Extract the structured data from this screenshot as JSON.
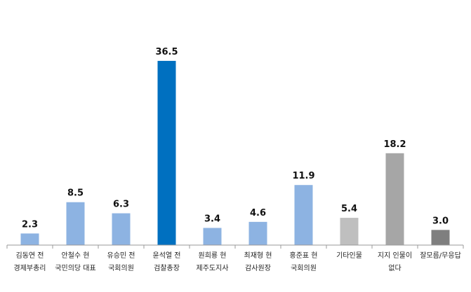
{
  "chart_data": {
    "type": "bar",
    "categories": [
      [
        "김동연 전",
        "경제부총리"
      ],
      [
        "안철수 현",
        "국민의당 대표"
      ],
      [
        "유승민 전",
        "국회의원"
      ],
      [
        "윤석열 전",
        "검찰총장"
      ],
      [
        "원희룡 현",
        "제주도지사"
      ],
      [
        "최재형 현",
        "감사원장"
      ],
      [
        "홍준표 현",
        "국회의원"
      ],
      [
        "기타인물"
      ],
      [
        "지지 인물이",
        "없다"
      ],
      [
        "잘모름/무응답"
      ]
    ],
    "values": [
      2.3,
      8.5,
      6.3,
      36.5,
      3.4,
      4.6,
      11.9,
      5.4,
      18.2,
      3.0
    ],
    "value_labels": [
      "2.3",
      "8.5",
      "6.3",
      "36.5",
      "3.4",
      "4.6",
      "11.9",
      "5.4",
      "18.2",
      "3.0"
    ],
    "colors": [
      "#8DB3E2",
      "#8DB3E2",
      "#8DB3E2",
      "#0070C0",
      "#8DB3E2",
      "#8DB3E2",
      "#8DB3E2",
      "#BFBFBF",
      "#A6A6A6",
      "#7F7F7F"
    ],
    "ylim": [
      0,
      40
    ],
    "grid": false,
    "legend": "none"
  }
}
